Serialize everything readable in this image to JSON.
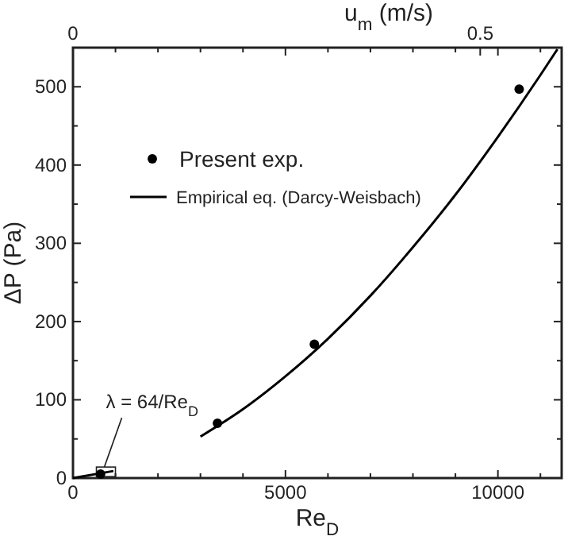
{
  "chart_data": {
    "type": "scatter",
    "xlabel": "Re$_{D}$",
    "ylabel": "ΔP (Pa)",
    "x2label": "u$_{m}$ (m/s)",
    "xlim": [
      0,
      11500
    ],
    "ylim": [
      0,
      550
    ],
    "x2lim": [
      0,
      0.6
    ],
    "xticks": [
      0,
      {
        "value": 1000,
        "label": null
      },
      {
        "value": 2000,
        "label": null
      },
      {
        "value": 3000,
        "label": null
      },
      {
        "value": 4000,
        "label": null
      },
      5000,
      {
        "value": 6000,
        "label": null
      },
      {
        "value": 7000,
        "label": null
      },
      {
        "value": 8000,
        "label": null
      },
      {
        "value": 9000,
        "label": null
      },
      10000,
      {
        "value": 11000,
        "label": null
      }
    ],
    "yticks": [
      0,
      {
        "value": 50,
        "label": null
      },
      100,
      {
        "value": 150,
        "label": null
      },
      200,
      {
        "value": 250,
        "label": null
      },
      300,
      {
        "value": 350,
        "label": null
      },
      400,
      {
        "value": 450,
        "label": null
      },
      500
    ],
    "x2ticks": [
      0,
      0.5
    ],
    "series": [
      {
        "name": "Present exp.",
        "color": "#000000",
        "marker": "circle",
        "x": [
          650,
          3400,
          5680,
          10500
        ],
        "values": [
          5,
          70,
          171,
          497
        ]
      },
      {
        "name": "Empirical eq. (Darcy-Weisbach)",
        "type": "line",
        "color": "#000000",
        "line_style": "solid",
        "x": [
          3000,
          4000,
          5000,
          6000,
          7000,
          8000,
          9000,
          10000,
          11000,
          11400
        ],
        "values": [
          53,
          88,
          130,
          178,
          233,
          295,
          362,
          436,
          515,
          548
        ]
      },
      {
        "type": "line",
        "color": "#000000",
        "line_style": "solid",
        "x": [
          0,
          950
        ],
        "values": [
          0,
          9
        ]
      }
    ],
    "annotations": [
      {
        "text": "λ = 64/Re$_{D}$",
        "x": 850,
        "y": 8
      }
    ],
    "legend": "top left",
    "grid": false
  }
}
